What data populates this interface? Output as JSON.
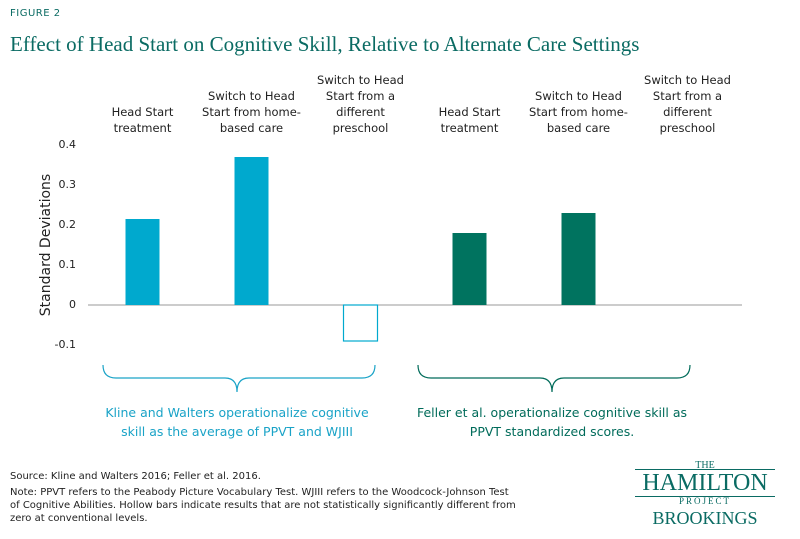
{
  "figure_label": "FIGURE 2",
  "chart_data": {
    "type": "bar",
    "title": "Effect of Head Start on Cognitive Skill, Relative to Alternate Care Settings",
    "ylabel": "Standard Deviations",
    "categories": [
      "Head Start treatment",
      "Switch to Head Start from home-based care",
      "Switch to Head Start from a different preschool",
      "Head Start treatment",
      "Switch to Head Start from home-based care",
      "Switch to Head Start from a different preschool"
    ],
    "values": [
      0.215,
      0.37,
      -0.09,
      0.18,
      0.23,
      null
    ],
    "colors": [
      "#00a9ce",
      "#00a9ce",
      "#00a9ce",
      "#00735f",
      "#00735f",
      "#00735f"
    ],
    "hollow": [
      false,
      false,
      true,
      false,
      false,
      false
    ],
    "ylim": [
      -0.1,
      0.4
    ],
    "yticks": [
      0.4,
      0.3,
      0.2,
      0.1,
      0,
      -0.1
    ],
    "annotations": [
      "Kline and Walters operationalize cognitive skill as the average of PPVT and WJIII",
      "Feller et al. operationalize cognitive skill as PPVT standardized scores."
    ]
  },
  "notes": [
    "Source: Kline and Walters 2016; Feller et al. 2016.",
    "Note: PPVT refers to the Peabody Picture Vocabulary Test. WJIII refers to the Woodcock-Johnson Test",
    "of Cognitive Abilities. Hollow bars indicate results that are not statistically significantly different from",
    "zero at conventional levels."
  ],
  "logo": {
    "the": "THE",
    "name": "HAMILTON",
    "project": "PROJECT",
    "org": "BROOKINGS"
  }
}
